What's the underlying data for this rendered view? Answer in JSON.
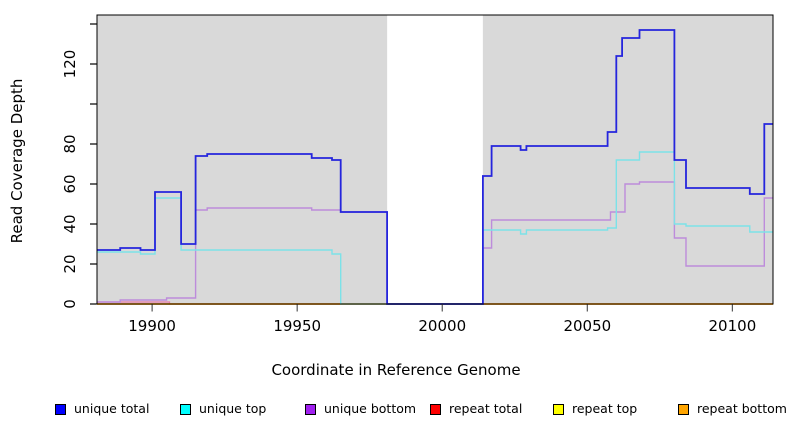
{
  "chart_data": {
    "type": "line",
    "subtype": "step-coverage",
    "title": "",
    "xlabel": "Coordinate in Reference Genome",
    "ylabel": "Read Coverage Depth",
    "xlim": [
      19881,
      20114
    ],
    "ylim": [
      0,
      144.5
    ],
    "x_ticks": [
      19900,
      19950,
      20000,
      20050,
      20100
    ],
    "x_tick_labels": [
      "19900",
      "19950",
      "20000",
      "20050",
      "20100"
    ],
    "y_ticks": [
      0,
      20,
      40,
      60,
      80,
      100,
      120,
      140
    ],
    "y_tick_labels": [
      "0",
      "20",
      "40",
      "60",
      "80",
      "",
      "120",
      ""
    ],
    "grid": false,
    "panel_background": "#ffffff",
    "covered_regions": [
      {
        "x0": 19881,
        "x1": 19981,
        "color": "#d9d9d9"
      },
      {
        "x0": 20014,
        "x1": 20114,
        "color": "#d9d9d9"
      }
    ],
    "gap_region": {
      "x0": 19981,
      "x1": 20014,
      "note": "white band, zero coverage"
    },
    "legend_position": "bottom",
    "draw_order": [
      3,
      4,
      5,
      2,
      1,
      0
    ],
    "series": [
      {
        "name": "unique total",
        "legend_color": "#0000ff",
        "line_color": "#2525dd",
        "line_width": 1.8,
        "steps": [
          [
            19881,
            27
          ],
          [
            19889,
            28
          ],
          [
            19896,
            27
          ],
          [
            19901,
            56
          ],
          [
            19910,
            30
          ],
          [
            19915,
            74
          ],
          [
            19919,
            75
          ],
          [
            19955,
            73
          ],
          [
            19962,
            72
          ],
          [
            19965,
            46
          ],
          [
            19981,
            0
          ],
          [
            20014,
            64
          ],
          [
            20017,
            79
          ],
          [
            20027,
            77
          ],
          [
            20029,
            79
          ],
          [
            20057,
            86
          ],
          [
            20060,
            124
          ],
          [
            20062,
            133
          ],
          [
            20068,
            137
          ],
          [
            20080,
            72
          ],
          [
            20084,
            58
          ],
          [
            20106,
            55
          ],
          [
            20111,
            90
          ],
          [
            20114,
            90
          ]
        ]
      },
      {
        "name": "unique top",
        "legend_color": "#00ffff",
        "line_color": "#7ce2e8",
        "line_width": 1.4,
        "steps": [
          [
            19881,
            26
          ],
          [
            19896,
            25
          ],
          [
            19901,
            53
          ],
          [
            19910,
            27
          ],
          [
            19962,
            25
          ],
          [
            19965,
            0
          ],
          [
            20014,
            37
          ],
          [
            20027,
            35
          ],
          [
            20029,
            37
          ],
          [
            20057,
            38
          ],
          [
            20060,
            72
          ],
          [
            20068,
            76
          ],
          [
            20080,
            40
          ],
          [
            20084,
            39
          ],
          [
            20106,
            36
          ],
          [
            20114,
            36
          ]
        ]
      },
      {
        "name": "unique bottom",
        "legend_color": "#a020f0",
        "line_color": "#bd8cdb",
        "line_width": 1.4,
        "steps": [
          [
            19881,
            1
          ],
          [
            19889,
            2
          ],
          [
            19905,
            3
          ],
          [
            19915,
            47
          ],
          [
            19919,
            48
          ],
          [
            19955,
            47
          ],
          [
            19965,
            46
          ],
          [
            19981,
            0
          ],
          [
            20014,
            28
          ],
          [
            20017,
            42
          ],
          [
            20058,
            46
          ],
          [
            20063,
            60
          ],
          [
            20068,
            61
          ],
          [
            20080,
            33
          ],
          [
            20084,
            19
          ],
          [
            20111,
            53
          ],
          [
            20114,
            53
          ]
        ]
      },
      {
        "name": "repeat total",
        "legend_color": "#ff0000",
        "line_color": "#e87ca8",
        "line_width": 1.3,
        "steps": [
          [
            19881,
            1
          ],
          [
            19906,
            0
          ],
          [
            20114,
            0
          ]
        ]
      },
      {
        "name": "repeat top",
        "legend_color": "#ffff00",
        "line_color": "#ffe81a",
        "line_width": 1.3,
        "steps": [
          [
            19881,
            0
          ],
          [
            20114,
            0
          ]
        ]
      },
      {
        "name": "repeat bottom",
        "legend_color": "#ffa500",
        "line_color": "#ff9f1a",
        "line_width": 1.8,
        "steps": [
          [
            19881,
            0
          ],
          [
            20114,
            0
          ]
        ]
      }
    ]
  },
  "axes": {
    "x_title": "Coordinate in Reference Genome",
    "y_title": "Read Coverage Depth"
  },
  "legend": {
    "items": [
      {
        "label": "unique total",
        "color": "#0000ff"
      },
      {
        "label": "unique top",
        "color": "#00ffff"
      },
      {
        "label": "unique bottom",
        "color": "#a020f0"
      },
      {
        "label": "repeat total",
        "color": "#ff0000"
      },
      {
        "label": "repeat top",
        "color": "#ffff00"
      },
      {
        "label": "repeat bottom",
        "color": "#ffa500"
      }
    ]
  }
}
